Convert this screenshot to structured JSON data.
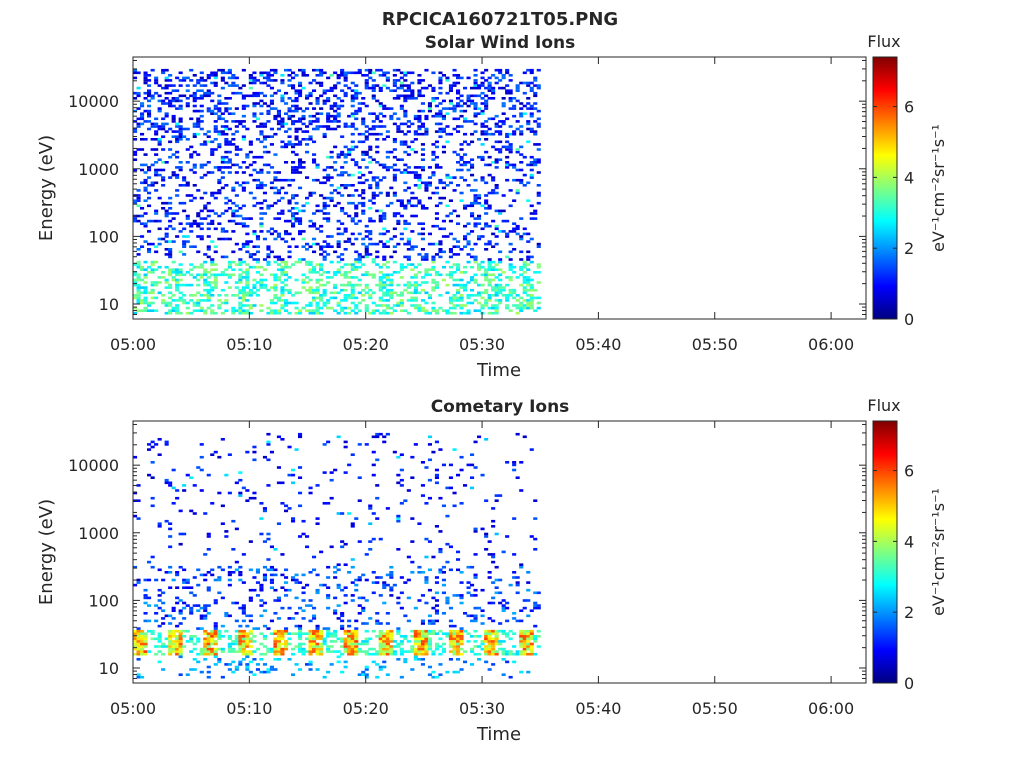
{
  "figure": {
    "title": "RPCICA160721T05.PNG"
  },
  "colormap": "jet",
  "chart_data": [
    {
      "type": "heatmap",
      "title": "Solar Wind Ions",
      "xlabel": "Time",
      "ylabel": "Energy (eV)",
      "y_scale": "log",
      "xlim": [
        "05:00",
        "06:03"
      ],
      "ylim": [
        6,
        45000
      ],
      "xticks": [
        "05:00",
        "05:10",
        "05:20",
        "05:30",
        "05:40",
        "05:50",
        "06:00"
      ],
      "yticks": [
        10,
        100,
        1000,
        10000
      ],
      "ytick_labels": [
        "10",
        "100",
        "1000",
        "10000"
      ],
      "data_extent": {
        "start": "05:00",
        "end": "05:35"
      },
      "colorbar": {
        "label": "Flux",
        "units": "eV⁻¹cm⁻²sr⁻¹s⁻¹",
        "range": [
          0,
          7.4
        ],
        "ticks": [
          "0",
          "2",
          "4",
          "6"
        ]
      },
      "dominant_flux": [
        {
          "energy_band": "10-40 eV",
          "typical_flux": 2.5
        },
        {
          "energy_band": "40-30000 eV",
          "typical_flux": 0.8
        }
      ]
    },
    {
      "type": "heatmap",
      "title": "Cometary Ions",
      "xlabel": "Time",
      "ylabel": "Energy (eV)",
      "y_scale": "log",
      "xlim": [
        "05:00",
        "06:03"
      ],
      "ylim": [
        6,
        45000
      ],
      "xticks": [
        "05:00",
        "05:10",
        "05:20",
        "05:30",
        "05:40",
        "05:50",
        "06:00"
      ],
      "yticks": [
        10,
        100,
        1000,
        10000
      ],
      "ytick_labels": [
        "10",
        "100",
        "1000",
        "10000"
      ],
      "data_extent": {
        "start": "05:00",
        "end": "05:35"
      },
      "colorbar": {
        "label": "Flux",
        "units": "eV⁻¹cm⁻²sr⁻¹s⁻¹",
        "range": [
          0,
          7.4
        ],
        "ticks": [
          "0",
          "2",
          "4",
          "6"
        ]
      },
      "dominant_flux": [
        {
          "energy_band": "15-35 eV",
          "typical_flux": 4.5
        },
        {
          "energy_band": "35-30000 eV",
          "typical_flux": 0.9
        }
      ]
    }
  ]
}
